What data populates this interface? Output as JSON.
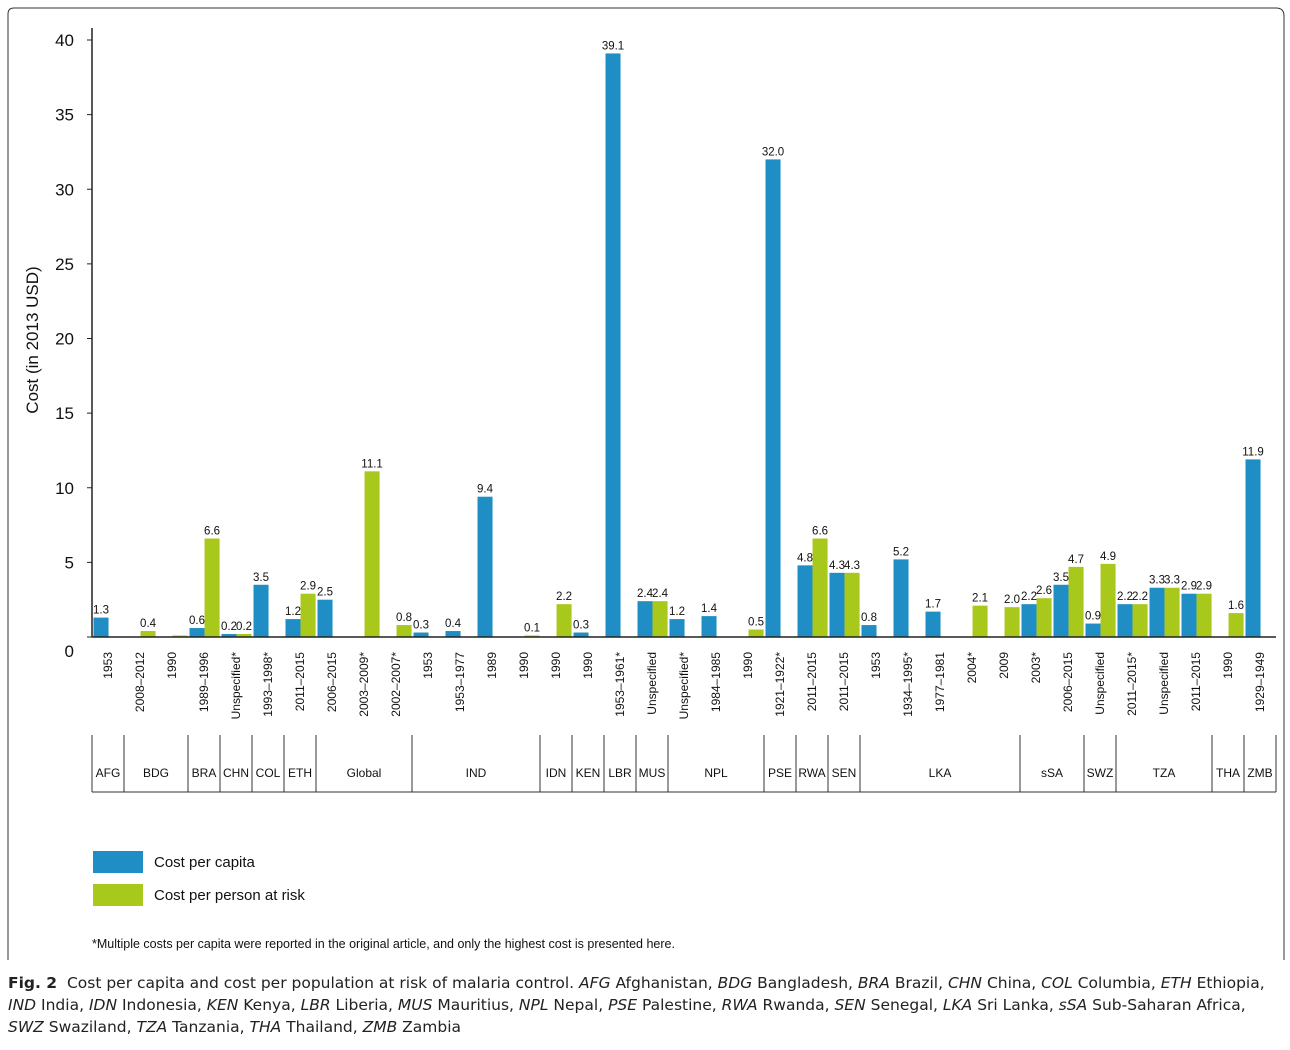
{
  "chart_data": {
    "type": "bar",
    "title": "",
    "xlabel": "",
    "ylabel": "Cost (in 2013 USD)",
    "ylim": [
      0,
      40
    ],
    "yticks": [
      0,
      5,
      10,
      15,
      20,
      25,
      30,
      35,
      40
    ],
    "grid": false,
    "legend_position": "bottom-left",
    "series_colors": {
      "cost_per_capita": "#1f8ec5",
      "cost_per_person_at_risk": "#a8c81c"
    },
    "legend": [
      {
        "key": "cost_per_capita",
        "label": "Cost per capita"
      },
      {
        "key": "cost_per_person_at_risk",
        "label": "Cost per person at risk"
      }
    ],
    "groups": [
      {
        "label": "AFG",
        "span": 1
      },
      {
        "label": "BDG",
        "span": 2
      },
      {
        "label": "BRA",
        "span": 1
      },
      {
        "label": "CHN",
        "span": 1
      },
      {
        "label": "COL",
        "span": 1
      },
      {
        "label": "ETH",
        "span": 1
      },
      {
        "label": "Global",
        "span": 3
      },
      {
        "label": "IND",
        "span": 4
      },
      {
        "label": "IDN",
        "span": 1
      },
      {
        "label": "KEN",
        "span": 1
      },
      {
        "label": "LBR",
        "span": 1
      },
      {
        "label": "MUS",
        "span": 1
      },
      {
        "label": "NPL",
        "span": 3
      },
      {
        "label": "PSE",
        "span": 1
      },
      {
        "label": "RWA",
        "span": 1
      },
      {
        "label": "SEN",
        "span": 1
      },
      {
        "label": "LKA",
        "span": 5
      },
      {
        "label": "sSA",
        "span": 2
      },
      {
        "label": "SWZ",
        "span": 1
      },
      {
        "label": "TZA",
        "span": 3
      },
      {
        "label": "THA",
        "span": 1
      },
      {
        "label": "ZMB",
        "span": 1
      }
    ],
    "categories": [
      "1953",
      "2008–2012",
      "1990",
      "1989–1996",
      "Unspecified*",
      "1993–1998*",
      "2011–2015",
      "2006–2015",
      "2003–2009*",
      "2002–2007*",
      "1953",
      "1953–1977",
      "1989",
      "1990",
      "1990",
      "1990",
      "1953–1961*",
      "Unspecified",
      "Unspecified*",
      "1984–1985",
      "1990",
      "1921–1922*",
      "2011–2015",
      "2011–2015",
      "1953",
      "1934–1995*",
      "1977–1981",
      "2004*",
      "2009",
      "2003*",
      "2006–2015",
      "Unspecified",
      "2011–2015*",
      "Unspecified",
      "2011–2015",
      "1990",
      "1929–1949"
    ],
    "series": [
      {
        "key": "cost_per_capita",
        "name": "Cost per capita",
        "values": [
          1.3,
          null,
          null,
          0.6,
          0.2,
          3.5,
          1.2,
          2.5,
          null,
          null,
          0.3,
          0.4,
          9.4,
          null,
          null,
          0.3,
          39.1,
          2.4,
          1.2,
          1.4,
          null,
          32.0,
          4.8,
          4.3,
          0.8,
          5.2,
          1.7,
          null,
          null,
          2.2,
          3.5,
          0.9,
          2.2,
          3.3,
          2.9,
          null,
          11.9
        ]
      },
      {
        "key": "cost_per_person_at_risk",
        "name": "Cost per person at risk",
        "values": [
          null,
          0.4,
          0.1,
          6.6,
          0.2,
          null,
          2.9,
          null,
          11.1,
          0.8,
          null,
          null,
          null,
          0.1,
          2.2,
          null,
          null,
          2.4,
          null,
          null,
          0.5,
          null,
          6.6,
          4.3,
          null,
          null,
          null,
          2.1,
          2.0,
          2.6,
          4.7,
          4.9,
          2.2,
          3.3,
          2.9,
          1.6,
          null
        ]
      }
    ],
    "labels_cost_per_capita": [
      "1.3",
      "",
      "",
      "0.6",
      "0.2",
      "3.5",
      "1.2",
      "2.5",
      "",
      "",
      "0.3",
      "0.4",
      "9.4",
      "",
      "",
      "0.3",
      "39.1",
      "2.4",
      "1.2",
      "1.4",
      "",
      "32.0",
      "4.8",
      "4.3",
      "0.8",
      "5.2",
      "1.7",
      "",
      "",
      "2.2",
      "3.5",
      "0.9",
      "2.2",
      "3.3",
      "2.9",
      "",
      "11.9"
    ],
    "labels_cost_per_person_at_risk": [
      "",
      "0.4",
      "",
      "6.6",
      "0.2",
      "",
      "2.9",
      "",
      "11.1",
      "0.8",
      "",
      "",
      "",
      "0.1",
      "2.2",
      "",
      "",
      "2.4",
      "",
      "",
      "0.5",
      "",
      "6.6",
      "4.3",
      "",
      "",
      "",
      "2.1",
      "2.0",
      "2.6",
      "4.7",
      "4.9",
      "2.2",
      "3.3",
      "2.9",
      "1.6",
      ""
    ]
  },
  "footnote": "*Multiple costs per capita were reported in the original article, and only the highest cost is presented here.",
  "caption": {
    "fig_label": "Fig. 2",
    "text": "Cost per capita and cost per population at risk of malaria control.",
    "abbreviations": [
      [
        "AFG",
        "Afghanistan"
      ],
      [
        "BDG",
        "Bangladesh"
      ],
      [
        "BRA",
        "Brazil"
      ],
      [
        "CHN",
        "China"
      ],
      [
        "COL",
        "Columbia"
      ],
      [
        "ETH",
        "Ethiopia"
      ],
      [
        "IND",
        "India"
      ],
      [
        "IDN",
        "Indonesia"
      ],
      [
        "KEN",
        "Kenya"
      ],
      [
        "LBR",
        "Liberia"
      ],
      [
        "MUS",
        "Mauritius"
      ],
      [
        "NPL",
        "Nepal"
      ],
      [
        "PSE",
        "Palestine"
      ],
      [
        "RWA",
        "Rwanda"
      ],
      [
        "SEN",
        "Senegal"
      ],
      [
        "LKA",
        "Sri Lanka"
      ],
      [
        "sSA",
        "Sub-Saharan Africa"
      ],
      [
        "SWZ",
        "Swaziland"
      ],
      [
        "TZA",
        "Tanzania"
      ],
      [
        "THA",
        "Thailand"
      ],
      [
        "ZMB",
        "Zambia"
      ]
    ]
  }
}
